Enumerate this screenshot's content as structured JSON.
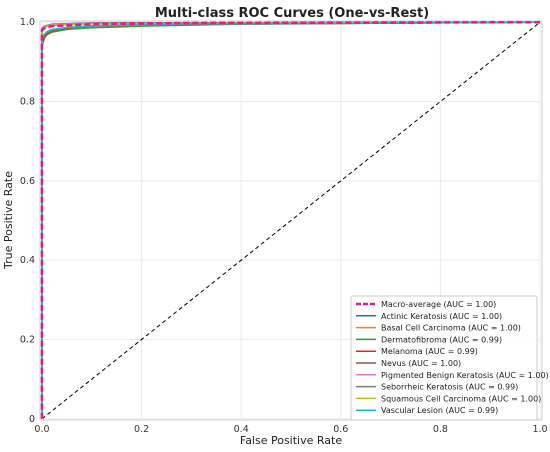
{
  "chart_data": {
    "type": "line",
    "title": "Multi-class ROC Curves (One-vs-Rest)",
    "xlabel": "False Positive Rate",
    "ylabel": "True Positive Rate",
    "xlim": [
      0,
      1
    ],
    "ylim": [
      0,
      1
    ],
    "xticks": [
      "0.0",
      "0.2",
      "0.4",
      "0.6",
      "0.8",
      "1.0"
    ],
    "yticks": [
      "0",
      "0.2",
      "0.4",
      "0.6",
      "0.8",
      "1.0"
    ],
    "grid": true,
    "legend_position": "bottom-right",
    "diagonal": {
      "x": [
        0,
        1
      ],
      "y": [
        0,
        1
      ],
      "color": "#000000",
      "style": "dashed"
    },
    "series": [
      {
        "name": "Macro-average (AUC = 1.00)",
        "color": "#e8198b",
        "style": "dashed",
        "width": 2.5,
        "x": [
          0,
          0,
          0.005,
          0.02,
          0.05,
          0.1,
          0.3,
          1.0
        ],
        "y": [
          0,
          0.98,
          0.985,
          0.99,
          0.992,
          0.995,
          0.998,
          1.0
        ]
      },
      {
        "name": "Actinic Keratosis (AUC = 1.00)",
        "color": "#1f77b4",
        "style": "solid",
        "width": 1.5,
        "x": [
          0,
          0,
          0.005,
          0.02,
          0.1,
          1.0
        ],
        "y": [
          0,
          0.985,
          0.99,
          0.995,
          0.998,
          1.0
        ]
      },
      {
        "name": "Basal Cell Carcinoma (AUC = 1.00)",
        "color": "#ff7f0e",
        "style": "solid",
        "width": 1.5,
        "x": [
          0,
          0,
          0.005,
          0.02,
          0.1,
          1.0
        ],
        "y": [
          0,
          0.982,
          0.988,
          0.993,
          0.997,
          1.0
        ]
      },
      {
        "name": "Dermatofibroma (AUC = 0.99)",
        "color": "#2ca02c",
        "style": "solid",
        "width": 1.5,
        "x": [
          0,
          0,
          0.005,
          0.01,
          0.02,
          0.05,
          0.1,
          0.2,
          0.4,
          1.0
        ],
        "y": [
          0,
          0.94,
          0.96,
          0.968,
          0.975,
          0.982,
          0.986,
          0.99,
          0.995,
          1.0
        ]
      },
      {
        "name": "Melanoma (AUC = 0.99)",
        "color": "#d62728",
        "style": "solid",
        "width": 1.5,
        "x": [
          0,
          0,
          0.005,
          0.01,
          0.02,
          0.05,
          0.1,
          0.3,
          1.0
        ],
        "y": [
          0,
          0.95,
          0.965,
          0.972,
          0.978,
          0.985,
          0.99,
          0.995,
          1.0
        ]
      },
      {
        "name": "Nevus (AUC = 1.00)",
        "color": "#8c564b",
        "style": "solid",
        "width": 1.5,
        "x": [
          0,
          0,
          0.005,
          0.02,
          0.1,
          1.0
        ],
        "y": [
          0,
          0.984,
          0.99,
          0.994,
          0.998,
          1.0
        ]
      },
      {
        "name": "Pigmented Benign Keratosis (AUC = 1.00)",
        "color": "#e377c2",
        "style": "solid",
        "width": 1.5,
        "x": [
          0,
          0,
          0.005,
          0.02,
          0.1,
          1.0
        ],
        "y": [
          0,
          0.983,
          0.989,
          0.994,
          0.997,
          1.0
        ]
      },
      {
        "name": "Seborrheic Keratosis (AUC = 0.99)",
        "color": "#7f7f7f",
        "style": "solid",
        "width": 1.5,
        "x": [
          0,
          0,
          0.005,
          0.01,
          0.02,
          0.05,
          0.1,
          0.3,
          1.0
        ],
        "y": [
          0,
          0.955,
          0.968,
          0.974,
          0.98,
          0.986,
          0.99,
          0.995,
          1.0
        ]
      },
      {
        "name": "Squamous Cell Carcinoma (AUC = 1.00)",
        "color": "#bcbd22",
        "style": "solid",
        "width": 1.5,
        "x": [
          0,
          0,
          0.005,
          0.02,
          0.1,
          1.0
        ],
        "y": [
          0,
          0.98,
          0.987,
          0.992,
          0.996,
          1.0
        ]
      },
      {
        "name": "Vascular Lesion (AUC = 0.99)",
        "color": "#17becf",
        "style": "solid",
        "width": 1.5,
        "x": [
          0,
          0,
          0.005,
          0.01,
          0.02,
          0.05,
          0.1,
          0.3,
          1.0
        ],
        "y": [
          0,
          0.96,
          0.97,
          0.976,
          0.982,
          0.987,
          0.991,
          0.996,
          1.0
        ]
      }
    ]
  }
}
